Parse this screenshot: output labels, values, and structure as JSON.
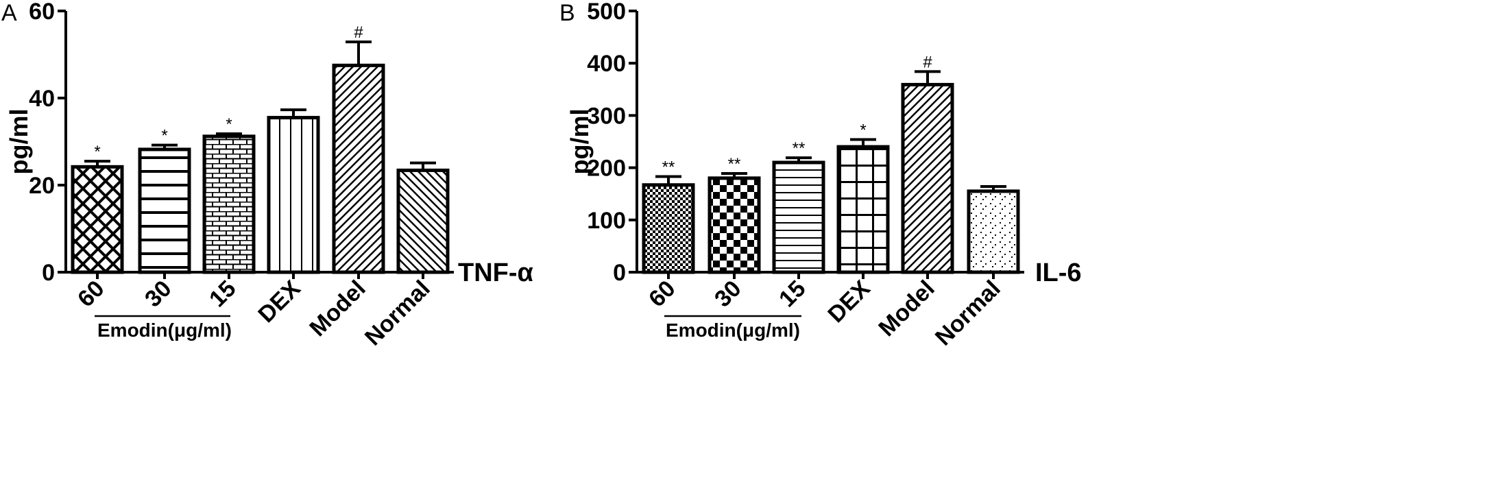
{
  "chart_data": [
    {
      "type": "bar",
      "panel_label": "A",
      "cytokine_label": "TNF-α",
      "ylabel": "pg/ml",
      "xlabel": "",
      "ylim": [
        0,
        60
      ],
      "yticks": [
        "0",
        "20",
        "40",
        "60"
      ],
      "categories": [
        "60",
        "30",
        "15",
        "DEX",
        "Model",
        "Normal"
      ],
      "values": [
        24.2,
        28.2,
        31.2,
        35.5,
        47.5,
        23.4
      ],
      "errors": [
        1.3,
        1.0,
        0.6,
        1.8,
        5.4,
        1.7
      ],
      "significance": [
        "*",
        "*",
        "*",
        "",
        "#",
        ""
      ],
      "patterns": [
        "crosshatch",
        "horizontal-lines",
        "brick",
        "vertical-lines",
        "diagonal-right",
        "diagonal-left"
      ],
      "group_label": "Emodin(μg/ml)"
    },
    {
      "type": "bar",
      "panel_label": "B",
      "cytokine_label": "IL-6",
      "ylabel": "pg/ml",
      "xlabel": "",
      "ylim": [
        0,
        500
      ],
      "yticks": [
        "0",
        "100",
        "200",
        "300",
        "400",
        "500"
      ],
      "categories": [
        "60",
        "30",
        "15",
        "DEX",
        "Model",
        "Normal"
      ],
      "values": [
        167,
        180,
        210,
        240,
        359,
        155
      ],
      "errors": [
        16,
        9,
        9,
        14,
        25,
        9
      ],
      "significance": [
        "**",
        "**",
        "**",
        "*",
        "#",
        ""
      ],
      "patterns": [
        "fine-dots",
        "checkerboard",
        "horizontal-lines",
        "grid",
        "diagonal-right",
        "sparse-dots"
      ],
      "group_label": "Emodin(μg/ml)"
    }
  ]
}
